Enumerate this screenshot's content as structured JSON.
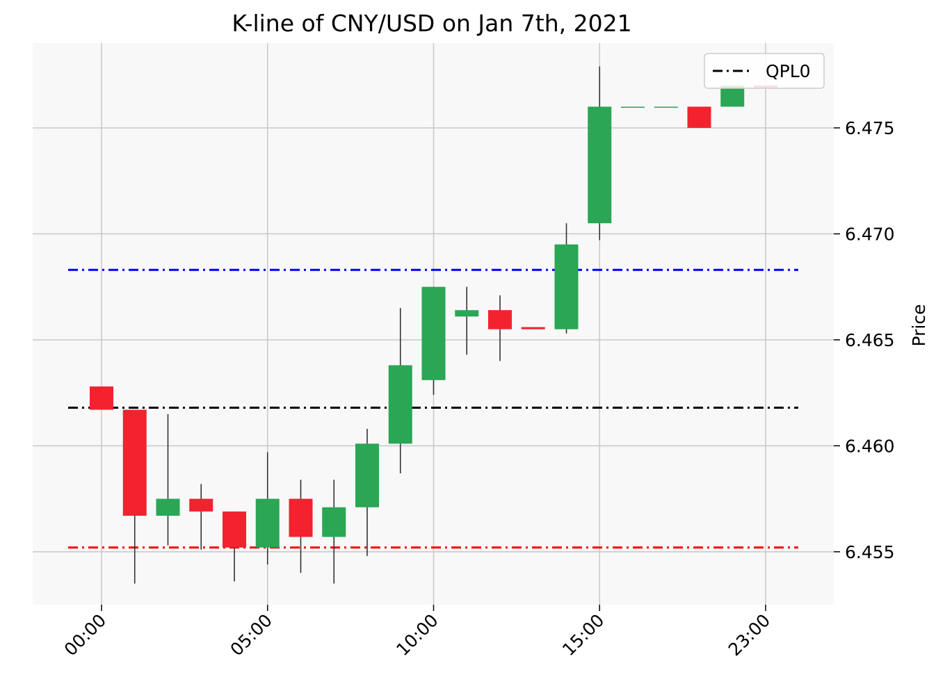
{
  "chart_data": {
    "type": "candlestick",
    "title": "K-line of CNY/USD on Jan 7th, 2021",
    "xlabel": "",
    "ylabel": "Price",
    "ylim": [
      6.4525,
      6.479
    ],
    "y_ticks": [
      6.455,
      6.46,
      6.465,
      6.47,
      6.475
    ],
    "y_tick_labels": [
      "6.455",
      "6.460",
      "6.465",
      "6.470",
      "6.475"
    ],
    "x_ticks": [
      0,
      5,
      10,
      15,
      20
    ],
    "x_tick_labels": [
      "00:00",
      "05:00",
      "10:00",
      "15:00",
      "23:00"
    ],
    "grid": true,
    "legend": {
      "position": "top-right",
      "entries": [
        "QPL0"
      ]
    },
    "colors": {
      "up": "#2aa655",
      "down": "#f2222f",
      "background": "#f8f8f8",
      "grid": "#c8c8c8"
    },
    "candles": [
      {
        "index": 0,
        "open": 6.4628,
        "high": 6.4628,
        "low": 6.4617,
        "close": 6.4617
      },
      {
        "index": 1,
        "open": 6.4617,
        "high": 6.4617,
        "low": 6.4535,
        "close": 6.4567
      },
      {
        "index": 2,
        "open": 6.4567,
        "high": 6.4615,
        "low": 6.4553,
        "close": 6.4575
      },
      {
        "index": 3,
        "open": 6.4575,
        "high": 6.4582,
        "low": 6.4551,
        "close": 6.4569
      },
      {
        "index": 4,
        "open": 6.4569,
        "high": 6.4569,
        "low": 6.4536,
        "close": 6.4552
      },
      {
        "index": 5,
        "open": 6.4552,
        "high": 6.4597,
        "low": 6.4544,
        "close": 6.4575
      },
      {
        "index": 6,
        "open": 6.4575,
        "high": 6.4584,
        "low": 6.454,
        "close": 6.4557
      },
      {
        "index": 7,
        "open": 6.4557,
        "high": 6.4584,
        "low": 6.4535,
        "close": 6.4571
      },
      {
        "index": 8,
        "open": 6.4571,
        "high": 6.4608,
        "low": 6.4548,
        "close": 6.4601
      },
      {
        "index": 9,
        "open": 6.4601,
        "high": 6.4665,
        "low": 6.4587,
        "close": 6.4638
      },
      {
        "index": 10,
        "open": 6.4631,
        "high": 6.4675,
        "low": 6.4624,
        "close": 6.4675
      },
      {
        "index": 11,
        "open": 6.4661,
        "high": 6.4675,
        "low": 6.4643,
        "close": 6.4664
      },
      {
        "index": 12,
        "open": 6.4664,
        "high": 6.4671,
        "low": 6.464,
        "close": 6.4655
      },
      {
        "index": 13,
        "open": 6.4656,
        "high": 6.4656,
        "low": 6.4655,
        "close": 6.4655
      },
      {
        "index": 14,
        "open": 6.4655,
        "high": 6.4705,
        "low": 6.4653,
        "close": 6.4695
      },
      {
        "index": 15,
        "open": 6.4705,
        "high": 6.4779,
        "low": 6.4697,
        "close": 6.476
      },
      {
        "index": 16,
        "open": 6.476,
        "high": 6.476,
        "low": 6.476,
        "close": 6.476
      },
      {
        "index": 17,
        "open": 6.476,
        "high": 6.476,
        "low": 6.476,
        "close": 6.476
      },
      {
        "index": 18,
        "open": 6.476,
        "high": 6.476,
        "low": 6.475,
        "close": 6.475
      },
      {
        "index": 19,
        "open": 6.476,
        "high": 6.477,
        "low": 6.476,
        "close": 6.477
      },
      {
        "index": 20,
        "open": 6.477,
        "high": 6.477,
        "low": 6.4769,
        "close": 6.4769
      }
    ],
    "hlines": [
      {
        "name": "QPL0",
        "value": 6.4618,
        "color": "#000000",
        "style": "dash-dot"
      },
      {
        "value": 6.4683,
        "color": "#0000ff",
        "style": "dash-dot"
      },
      {
        "value": 6.4552,
        "color": "#ff0000",
        "style": "dash-dot"
      }
    ]
  }
}
